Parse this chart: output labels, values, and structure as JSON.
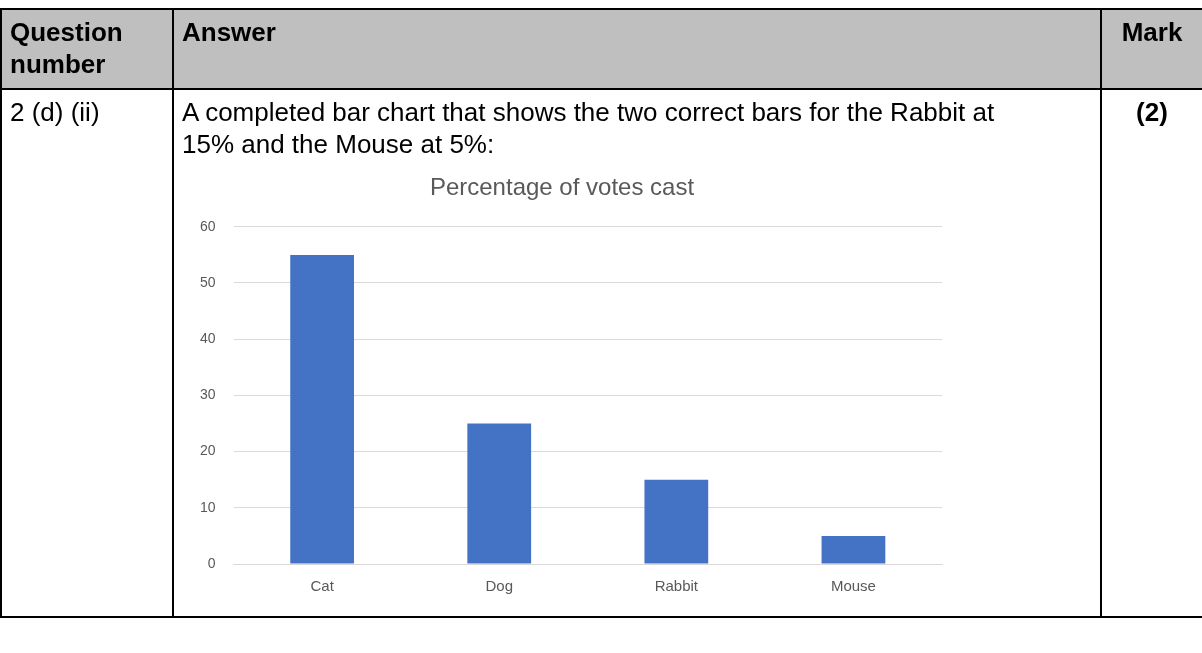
{
  "chart_data": {
    "type": "bar",
    "title": "Percentage of votes cast",
    "categories": [
      "Cat",
      "Dog",
      "Rabbit",
      "Mouse"
    ],
    "values": [
      55,
      25,
      15,
      5
    ],
    "color": "#4472c4",
    "ylim": [
      0,
      60
    ],
    "yticks": [
      0,
      10,
      20,
      30,
      40,
      50,
      60
    ],
    "grid": "y",
    "legend": false,
    "annotations": [
      "Question number",
      "Answer",
      "Mark",
      "2 (d) (ii)",
      "A completed bar chart that shows the two correct bars for the Rabbit at 15% and the Mouse at 5%:",
      "(2)"
    ]
  }
}
